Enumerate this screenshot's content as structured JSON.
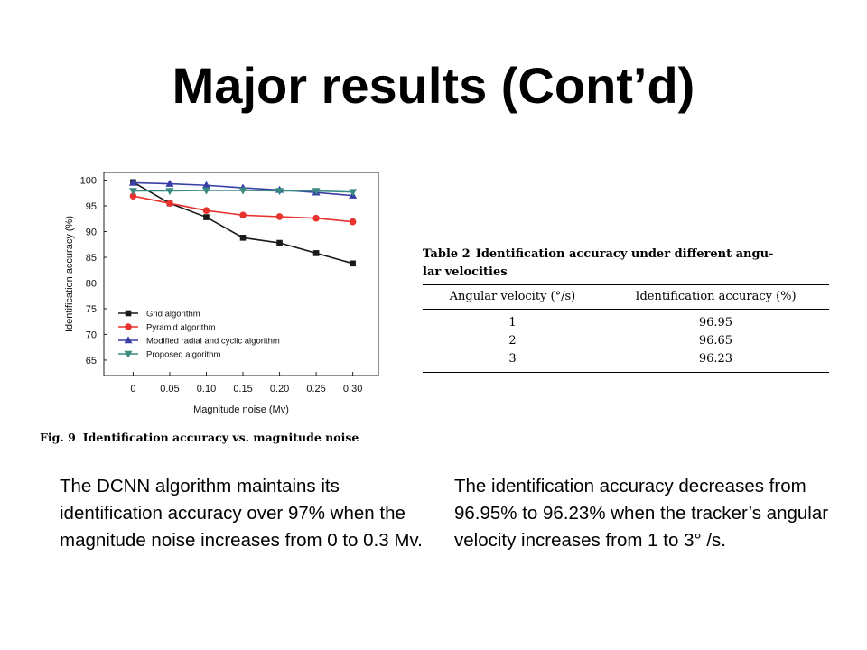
{
  "slide": {
    "title": "Major results (Cont’d)"
  },
  "figure": {
    "number": "Fig. 9",
    "caption": "Identification accuracy vs. magnitude noise"
  },
  "chart_data": {
    "type": "line",
    "xlabel": "Magnitude noise (Mv)",
    "ylabel": "Identification accuracy (%)",
    "x": [
      0,
      0.05,
      0.1,
      0.15,
      0.2,
      0.25,
      0.3
    ],
    "x_tick_labels": [
      "0",
      "0.05",
      "0.10",
      "0.15",
      "0.20",
      "0.25",
      "0.30"
    ],
    "y_tick_labels": [
      "65",
      "70",
      "75",
      "80",
      "85",
      "90",
      "95",
      "100"
    ],
    "xlim": [
      -0.04,
      0.335
    ],
    "ylim": [
      62,
      101.5
    ],
    "grid": false,
    "legend_position": "bottom-left",
    "series": [
      {
        "name": "Grid algorithm",
        "color": "#1a1a1a",
        "marker": "square",
        "values": [
          99.6,
          95.5,
          92.8,
          88.8,
          87.8,
          85.8,
          83.8
        ]
      },
      {
        "name": "Pyramid algorithm",
        "color": "#e8322d",
        "marker": "circle",
        "values": [
          96.9,
          95.5,
          94.1,
          93.2,
          92.9,
          92.6,
          91.9
        ]
      },
      {
        "name": "Modified radial and cyclic algorithm",
        "color": "#3a3fa8",
        "marker": "triangle-up",
        "values": [
          99.5,
          99.3,
          99.0,
          98.5,
          98.1,
          97.6,
          97.0
        ]
      },
      {
        "name": "Proposed algorithm",
        "color": "#3a8a80",
        "marker": "triangle-down",
        "values": [
          97.9,
          97.9,
          98.0,
          98.0,
          97.9,
          97.9,
          97.7
        ]
      }
    ]
  },
  "table": {
    "number": "Table 2",
    "caption_line1": "Identification accuracy under different angu-",
    "caption_line2": "lar velocities",
    "headers": [
      "Angular velocity (°/s)",
      "Identification accuracy (%)"
    ],
    "rows": [
      [
        "1",
        "96.95"
      ],
      [
        "2",
        "96.65"
      ],
      [
        "3",
        "96.23"
      ]
    ]
  },
  "text": {
    "left": "The DCNN algorithm maintains its identification accuracy over 97% when the magnitude noise increases from 0 to 0.3 Mv.",
    "right": "The identification accuracy decreases from 96.95% to 96.23% when the tracker’s angular velocity increases from 1 to 3° /s."
  }
}
